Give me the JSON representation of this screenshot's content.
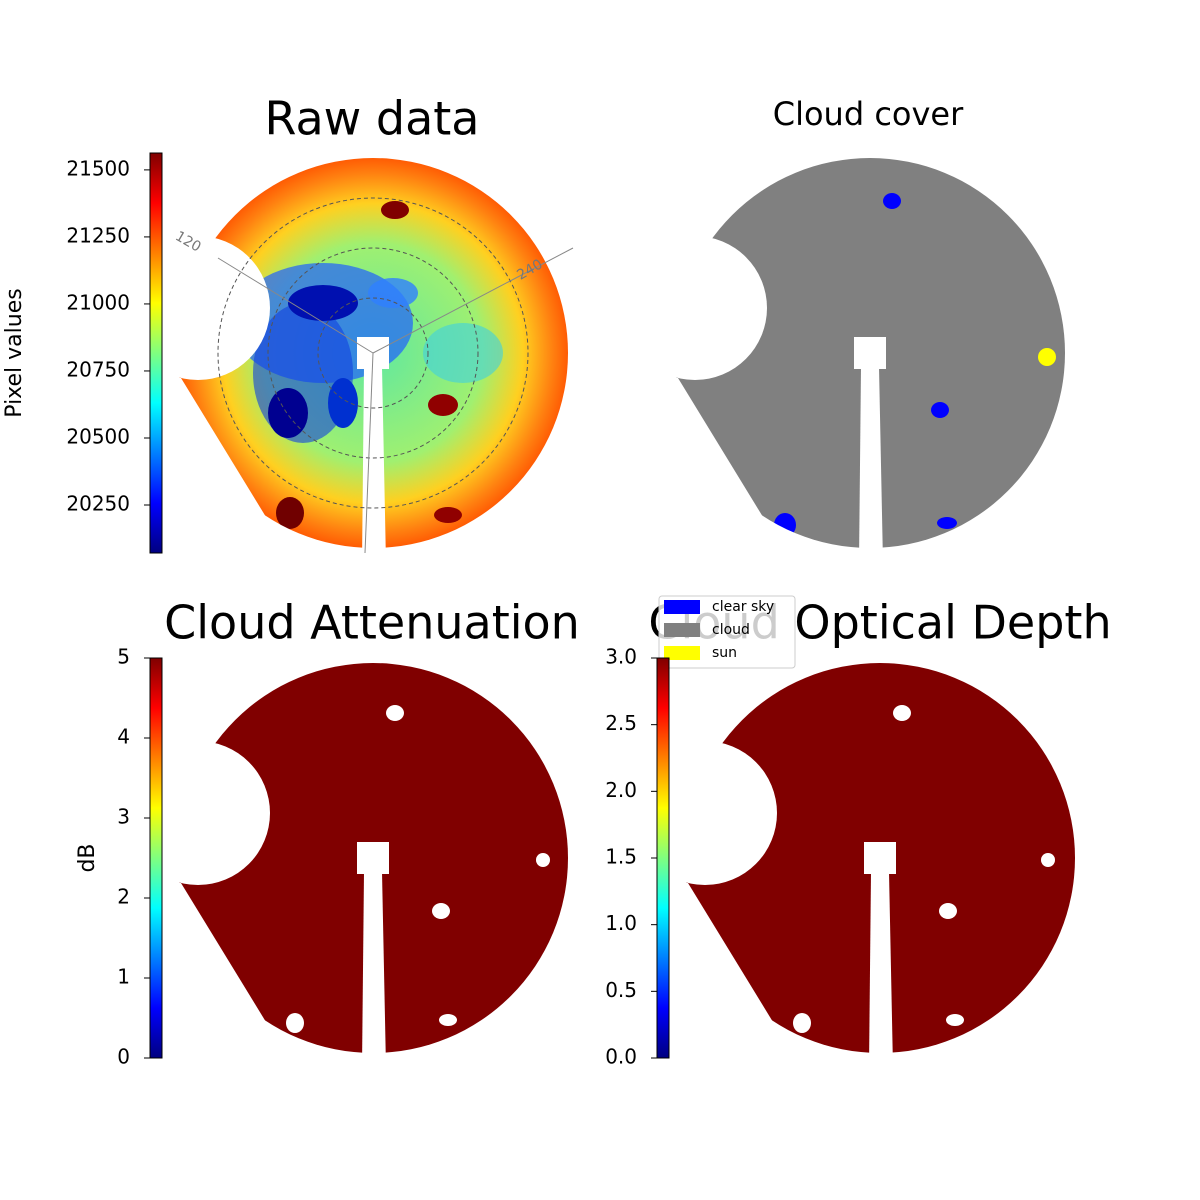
{
  "chart_data": [
    {
      "type": "image",
      "title": "Raw data",
      "colorbar_label": "Pixel values",
      "colormap": "jet",
      "ylim": [
        20071,
        21563
      ],
      "yticks": [
        20250,
        20500,
        20750,
        21000,
        21250,
        21500
      ],
      "annotations": [
        "120",
        "240"
      ]
    },
    {
      "type": "image",
      "title": "Cloud cover",
      "legend": [
        {
          "name": "clear sky",
          "color": "#0000ff"
        },
        {
          "name": "cloud",
          "color": "#808080"
        },
        {
          "name": "sun",
          "color": "#ffff00"
        }
      ]
    },
    {
      "type": "image",
      "title": "Cloud Attenuation",
      "colorbar_label": "dB",
      "colormap": "jet",
      "ylim": [
        0,
        5
      ],
      "yticks": [
        0,
        1,
        2,
        3,
        4,
        5
      ]
    },
    {
      "type": "image",
      "title": "Cloud Optical Depth",
      "colormap": "jet",
      "ylim": [
        0,
        3
      ],
      "yticks": [
        {
          "value": 0,
          "label": "0.0"
        },
        {
          "value": 0.5,
          "label": "0.5"
        },
        {
          "value": 1,
          "label": "1.0"
        },
        {
          "value": 1.5,
          "label": "1.5"
        },
        {
          "value": 2,
          "label": "2.0"
        },
        {
          "value": 2.5,
          "label": "2.5"
        },
        {
          "value": 3,
          "label": "3.0"
        }
      ]
    }
  ]
}
